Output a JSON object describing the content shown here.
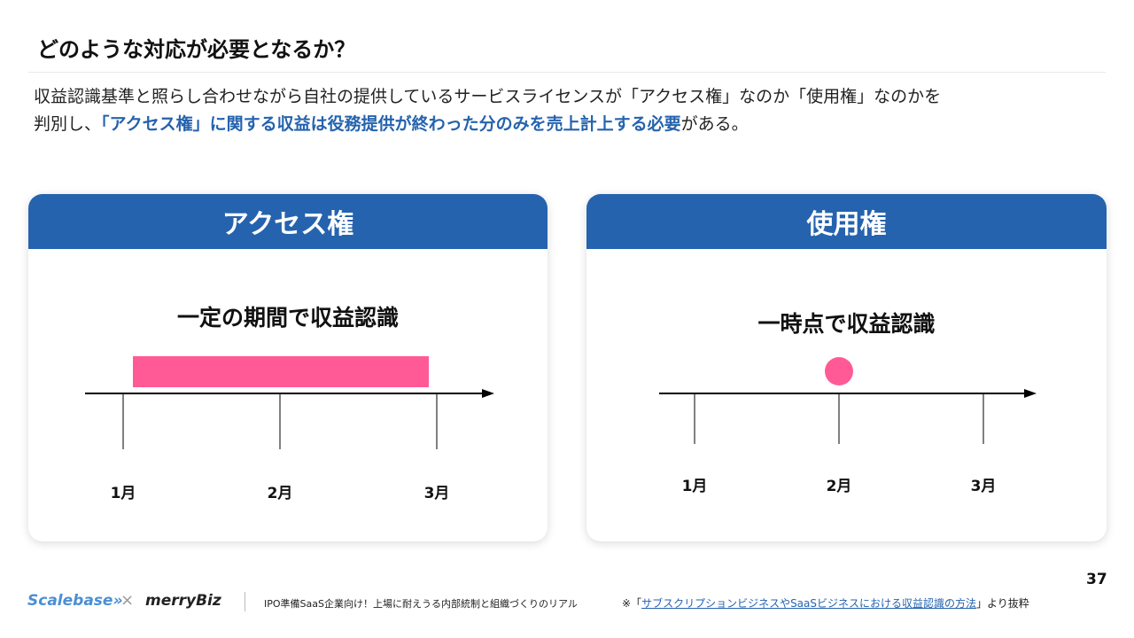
{
  "title": "どのような対応が必要となるか？",
  "lead": {
    "line1": "収益認識基準と照らし合わせながら自社の提供しているサービスライセンスが「アクセス権」なのか「使用権」なのかを",
    "line2_prefix": "判別し、",
    "line2_highlight": "「アクセス権」に関する収益は役務提供が終わった分のみを売上計上する必要",
    "line2_suffix": "がある。"
  },
  "cards": [
    {
      "header": "アクセス権",
      "title": "一定の期間で収益認識",
      "months": [
        "1月",
        "2月",
        "3月"
      ],
      "marker": "bar",
      "recognition_span": [
        "1月",
        "3月"
      ]
    },
    {
      "header": "使用権",
      "title": "一時点で収益認識",
      "months": [
        "1月",
        "2月",
        "3月"
      ],
      "marker": "point",
      "recognition_point": "2月"
    }
  ],
  "colors": {
    "accent": "#2563ae",
    "marker": "#ff5a96"
  },
  "page_number": "37",
  "footer": {
    "logo1": "Scalebase»",
    "cross": "×",
    "logo2": "merryBiz",
    "caption": "IPO準備SaaS企業向け！上場に耐えうる内部統制と組織づくりのリアル",
    "note_prefix": "※「",
    "note_link": "サブスクリプションビジネスやSaaSビジネスにおける収益認識の方法",
    "note_suffix": "」より抜粋"
  }
}
